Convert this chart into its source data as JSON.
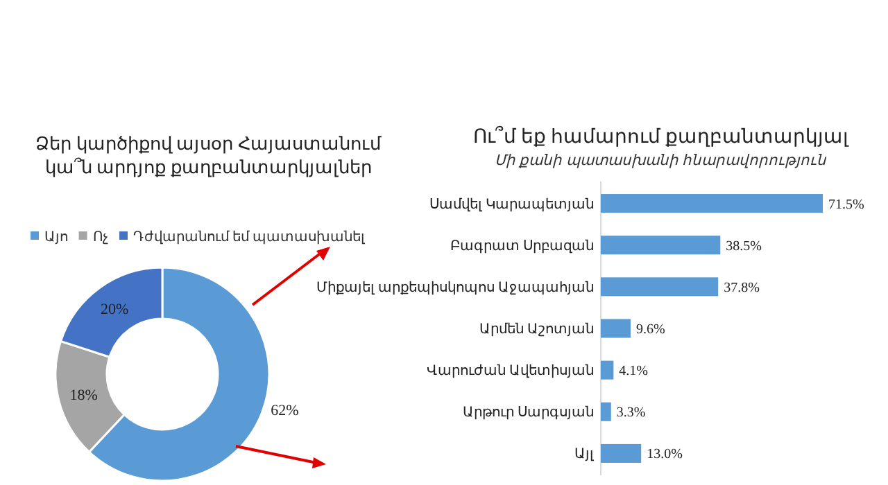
{
  "chart_data": [
    {
      "type": "donut",
      "title": "Ձեր կարծիքով այսօր Հայաստանում\nկա՞ն արդյոք քաղբանտարկյալներ",
      "categories": [
        "Այո",
        "Ոչ",
        "Դժվարանում եմ պատասխանել"
      ],
      "values": [
        62,
        18,
        20
      ],
      "colors": [
        "#5b9bd5",
        "#a5a5a5",
        "#4472c4"
      ],
      "value_labels": [
        "62%",
        "18%",
        "20%"
      ],
      "legend": "top"
    },
    {
      "type": "bar",
      "orientation": "horizontal",
      "title": "Ու՞մ եք համարում քաղբանտարկյալ",
      "subtitle": "Մի քանի պատասխանի հնարավորություն",
      "categories": [
        "Սամվել Կարապետյան",
        "Բագրատ Սրբազան",
        "Միքայել արքեպիսկոպոս Աջապահյան",
        "Արմեն Աշոտյան",
        "Վարուժան Ավետիսյան",
        "Արթուր Սարգսյան",
        "Այլ"
      ],
      "values": [
        71.5,
        38.5,
        37.8,
        9.6,
        4.1,
        3.3,
        13.0
      ],
      "value_labels": [
        "71.5%",
        "38.5%",
        "37.8%",
        "9.6%",
        "4.1%",
        "3.3%",
        "13.0%"
      ],
      "color": "#5b9bd5"
    }
  ]
}
